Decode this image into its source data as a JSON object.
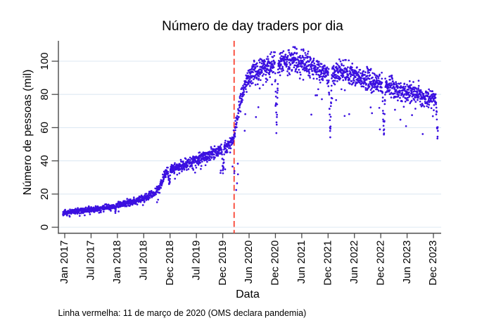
{
  "title": "Número de day traders por dia",
  "caption": "Linha vermelha: 11 de março de 2020 (OMS declara pandemia)",
  "colors": {
    "points": "#3b10e0",
    "reference_line": "#fa3a28",
    "gridlines": "#dde9f3",
    "axis": "#4a4a4a",
    "text": "#000000"
  },
  "chart_data": {
    "type": "scatter",
    "title": "Número de day traders por dia",
    "xlabel": "Data",
    "ylabel": "Número de pessoas (mil)",
    "x_tick_labels": [
      "Jan 2017",
      "Jul 2017",
      "Jan 2018",
      "Jul 2018",
      "Dec 2018",
      "Jul 2019",
      "Dec 2019",
      "Jun 2020",
      "Dec 2020",
      "Jun 2021",
      "Dec 2021",
      "Jun 2022",
      "Dec 2022",
      "Jun 2023",
      "Dec 2023"
    ],
    "y_ticks": [
      0,
      20,
      40,
      60,
      80,
      100
    ],
    "ylim": [
      0,
      110
    ],
    "grid": "horizontal-only",
    "legend": "none",
    "reference_line": {
      "label": "11 de março de 2020 (OMS declara pandemia)",
      "x_decimal_year": 2020.192,
      "style": "dashed-vertical"
    },
    "series": [
      {
        "name": "day traders (mil)",
        "sampling": "daily 2017-01-01 to 2023-12-29",
        "seed": 11,
        "trend_anchors": [
          [
            2017.0,
            8.7
          ],
          [
            2017.25,
            9.5
          ],
          [
            2017.5,
            10.5
          ],
          [
            2017.75,
            11.5
          ],
          [
            2018.0,
            13.2
          ],
          [
            2018.25,
            14.8
          ],
          [
            2018.5,
            17.5
          ],
          [
            2018.7,
            20.5
          ],
          [
            2018.8,
            24.0
          ],
          [
            2018.92,
            33.0
          ],
          [
            2019.0,
            35.0
          ],
          [
            2019.2,
            36.5
          ],
          [
            2019.5,
            40.5
          ],
          [
            2019.8,
            44.5
          ],
          [
            2020.0,
            47.5
          ],
          [
            2020.12,
            50.0
          ],
          [
            2020.19,
            55.0
          ],
          [
            2020.25,
            65.0
          ],
          [
            2020.31,
            75.0
          ],
          [
            2020.38,
            84.0
          ],
          [
            2020.46,
            90.0
          ],
          [
            2020.55,
            93.0
          ],
          [
            2020.7,
            95.5
          ],
          [
            2020.85,
            96.5
          ],
          [
            2021.0,
            98.0
          ],
          [
            2021.15,
            100.0
          ],
          [
            2021.3,
            100.5
          ],
          [
            2021.45,
            99.5
          ],
          [
            2021.6,
            97.5
          ],
          [
            2021.75,
            95.0
          ],
          [
            2021.9,
            93.0
          ],
          [
            2022.05,
            93.0
          ],
          [
            2022.2,
            93.5
          ],
          [
            2022.35,
            92.0
          ],
          [
            2022.5,
            90.5
          ],
          [
            2022.65,
            89.0
          ],
          [
            2022.8,
            87.5
          ],
          [
            2022.95,
            86.0
          ],
          [
            2023.1,
            84.5
          ],
          [
            2023.25,
            83.0
          ],
          [
            2023.4,
            82.0
          ],
          [
            2023.55,
            80.5
          ],
          [
            2023.7,
            79.0
          ],
          [
            2023.85,
            77.5
          ],
          [
            2023.99,
            76.5
          ]
        ],
        "noise_sd": {
          "base": 0.42,
          "slope": 0.033
        },
        "year_end_dips": [
          {
            "center": 2017.985,
            "depth": 0.13,
            "width_days": 7
          },
          {
            "center": 2018.985,
            "depth": 0.28,
            "width_days": 11
          },
          {
            "center": 2019.985,
            "depth": 0.3,
            "width_days": 11
          },
          {
            "center": 2020.985,
            "depth": 0.38,
            "width_days": 13
          },
          {
            "center": 2021.985,
            "depth": 0.42,
            "width_days": 13
          },
          {
            "center": 2022.985,
            "depth": 0.36,
            "width_days": 13
          },
          {
            "center": 2023.985,
            "depth": 0.3,
            "width_days": 12
          }
        ],
        "outliers": {
          "prob": 0.02,
          "factor_min": 0.68,
          "factor_span": 0.25
        },
        "march_2020_outliers": {
          "from": 2020.19,
          "to": 2020.27,
          "prob": 0.13,
          "factor_min": 0.35,
          "factor_span": 0.4
        }
      }
    ]
  }
}
